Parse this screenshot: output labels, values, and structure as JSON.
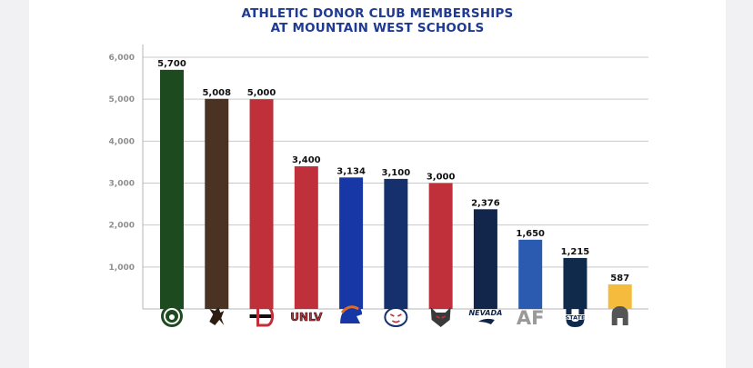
{
  "chart_data": {
    "type": "bar",
    "title_lines": [
      "ATHLETIC DONOR CLUB MEMBERSHIPS",
      "AT MOUNTAIN WEST SCHOOLS"
    ],
    "categories": [
      "Colorado State",
      "Wyoming",
      "San Diego State",
      "UNLV",
      "Boise State",
      "Fresno State",
      "New Mexico",
      "Nevada",
      "Air Force",
      "Utah State",
      "San Jose State"
    ],
    "values": [
      5700,
      5008,
      5000,
      3400,
      3134,
      3100,
      3000,
      2376,
      1650,
      1215,
      587
    ],
    "value_labels": [
      "5,700",
      "5,008",
      "5,000",
      "3,400",
      "3,134",
      "3,100",
      "3,000",
      "2,376",
      "1,650",
      "1,215",
      "587"
    ],
    "bar_colors": [
      "#1e4a1f",
      "#4a3322",
      "#c0303a",
      "#c0303a",
      "#1737a6",
      "#16306d",
      "#c0303a",
      "#11264a",
      "#2a5bb0",
      "#102a4c",
      "#f4bb3c"
    ],
    "logo_texts": [
      "",
      "",
      "",
      "UNLV",
      "",
      "",
      "",
      "NEVADA",
      "AF",
      "STATE",
      ""
    ],
    "y_ticks": [
      1000,
      2000,
      3000,
      4000,
      5000,
      6000
    ],
    "y_tick_labels": [
      "1,000",
      "2,000",
      "3,000",
      "4,000",
      "5,000",
      "6,000"
    ],
    "ylim": [
      0,
      6000
    ],
    "grid": true
  }
}
